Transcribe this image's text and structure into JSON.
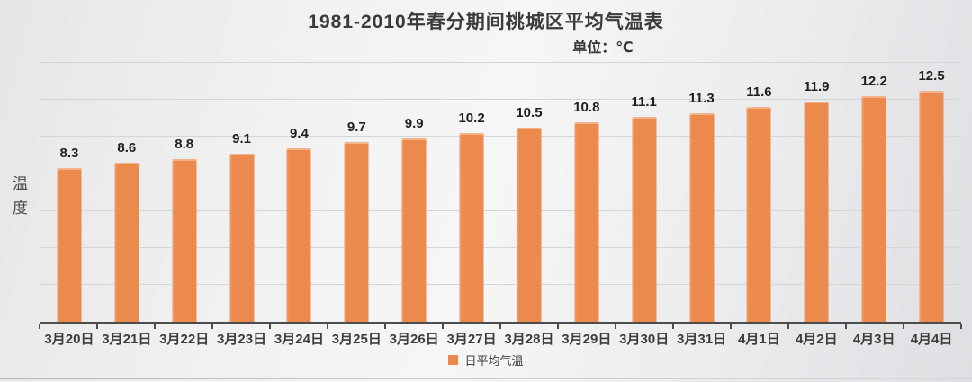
{
  "accent_color": "#ec8a4e",
  "text_colors": {
    "title": "#3a3a3a",
    "data_label": "#1f1f1f",
    "axis_label": "#3c3c3c"
  },
  "chart_data": {
    "type": "bar",
    "title": "1981-2010年春分期间桃城区平均气温表",
    "subtitle": "单位：℃",
    "xlabel": "",
    "ylabel": "温度",
    "categories": [
      "3月20日",
      "3月21日",
      "3月22日",
      "3月23日",
      "3月24日",
      "3月25日",
      "3月26日",
      "3月27日",
      "3月28日",
      "3月29日",
      "3月30日",
      "3月31日",
      "4月1日",
      "4月2日",
      "4月3日",
      "4月4日"
    ],
    "series": [
      {
        "name": "日平均气温",
        "color": "#ec8a4e",
        "values": [
          8.3,
          8.6,
          8.8,
          9.1,
          9.4,
          9.7,
          9.9,
          10.2,
          10.5,
          10.8,
          11.1,
          11.3,
          11.6,
          11.9,
          12.2,
          12.5
        ]
      }
    ],
    "ylim": [
      0,
      14
    ],
    "gridline_step": 2,
    "grid": true,
    "y_tick_labels_visible": false,
    "data_labels": true,
    "legend_position": "bottom"
  }
}
